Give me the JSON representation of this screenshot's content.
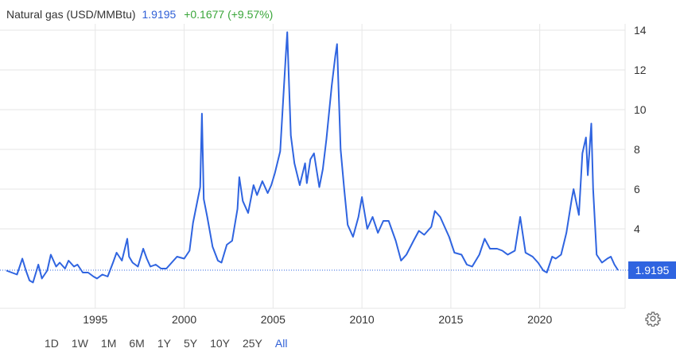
{
  "header": {
    "name": "Natural gas (USD/MMBtu)",
    "price": "1.9195",
    "change": "+0.1677 (+9.57%)"
  },
  "colors": {
    "line": "#2f64e0",
    "price": "#2f5fd6",
    "change": "#3aa63a",
    "grid": "#e6e6e6",
    "badge": "#2f64e0"
  },
  "last_price_label": "1.9195",
  "ranges": [
    "1D",
    "1W",
    "1M",
    "6M",
    "1Y",
    "5Y",
    "10Y",
    "25Y",
    "All"
  ],
  "active_range": "All",
  "settings_icon": "gear-icon",
  "chart_data": {
    "type": "line",
    "series": [
      {
        "x": [
          1990.0,
          1990.3,
          1990.6,
          1990.9,
          1991.1,
          1991.3,
          1991.5,
          1991.8,
          1992.0,
          1992.3,
          1992.5,
          1992.8,
          1993.0,
          1993.3,
          1993.5,
          1993.8,
          1994.0,
          1994.3,
          1994.6,
          1994.9,
          1995.1,
          1995.4,
          1995.7,
          1996.0,
          1996.2,
          1996.5,
          1996.8,
          1996.9,
          1997.1,
          1997.4,
          1997.7,
          1997.9,
          1998.1,
          1998.4,
          1998.7,
          1999.0,
          1999.3,
          1999.6,
          2000.0,
          2000.3,
          2000.5,
          2000.7,
          2000.9,
          2001.0,
          2001.1,
          2001.3,
          2001.6,
          2001.9,
          2002.1,
          2002.4,
          2002.7,
          2003.0,
          2003.1,
          2003.3,
          2003.6,
          2003.9,
          2004.1,
          2004.4,
          2004.7,
          2004.9,
          2005.1,
          2005.4,
          2005.7,
          2005.8,
          2005.9,
          2006.0,
          2006.2,
          2006.5,
          2006.8,
          2006.9,
          2007.1,
          2007.3,
          2007.6,
          2007.8,
          2008.0,
          2008.3,
          2008.5,
          2008.6,
          2008.8,
          2009.0,
          2009.2,
          2009.5,
          2009.8,
          2010.0,
          2010.3,
          2010.6,
          2010.9,
          2011.2,
          2011.5,
          2011.9,
          2012.2,
          2012.5,
          2012.9,
          2013.2,
          2013.5,
          2013.9,
          2014.1,
          2014.4,
          2014.7,
          2014.9,
          2015.2,
          2015.6,
          2015.9,
          2016.2,
          2016.6,
          2016.9,
          2017.2,
          2017.6,
          2017.9,
          2018.2,
          2018.6,
          2018.9,
          2019.2,
          2019.6,
          2019.9,
          2020.2,
          2020.4,
          2020.7,
          2020.9,
          2021.2,
          2021.5,
          2021.8,
          2021.9,
          2022.2,
          2022.4,
          2022.6,
          2022.7,
          2022.9,
          2023.0,
          2023.2,
          2023.5,
          2023.8,
          2024.0,
          2024.2,
          2024.4
        ],
        "y": [
          1.9,
          1.8,
          1.7,
          2.5,
          1.9,
          1.4,
          1.3,
          2.2,
          1.5,
          1.9,
          2.7,
          2.1,
          2.3,
          2.0,
          2.4,
          2.1,
          2.2,
          1.8,
          1.8,
          1.6,
          1.5,
          1.7,
          1.6,
          2.3,
          2.8,
          2.4,
          3.5,
          2.6,
          2.3,
          2.1,
          3.0,
          2.5,
          2.1,
          2.2,
          2.0,
          2.0,
          2.3,
          2.6,
          2.5,
          2.9,
          4.3,
          5.2,
          6.1,
          9.8,
          5.5,
          4.6,
          3.1,
          2.4,
          2.3,
          3.2,
          3.4,
          5.0,
          6.6,
          5.4,
          4.8,
          6.2,
          5.7,
          6.4,
          5.8,
          6.2,
          6.8,
          7.9,
          12.5,
          13.9,
          11.2,
          8.7,
          7.3,
          6.2,
          7.3,
          6.3,
          7.5,
          7.8,
          6.1,
          7.0,
          8.5,
          11.2,
          12.7,
          13.3,
          8.0,
          6.0,
          4.2,
          3.6,
          4.6,
          5.6,
          4.0,
          4.6,
          3.8,
          4.4,
          4.4,
          3.4,
          2.4,
          2.7,
          3.4,
          3.9,
          3.7,
          4.1,
          4.9,
          4.6,
          4.0,
          3.6,
          2.8,
          2.7,
          2.2,
          2.1,
          2.7,
          3.5,
          3.0,
          3.0,
          2.9,
          2.7,
          2.9,
          4.6,
          2.8,
          2.6,
          2.3,
          1.9,
          1.8,
          2.6,
          2.5,
          2.7,
          3.8,
          5.5,
          6.0,
          4.7,
          7.8,
          8.6,
          6.7,
          9.3,
          6.0,
          2.7,
          2.3,
          2.5,
          2.6,
          2.2,
          1.9195
        ],
        "color": "#2f64e0"
      }
    ],
    "xticks": [
      "1995",
      "2000",
      "2005",
      "2010",
      "2015",
      "2020"
    ],
    "xtick_values": [
      1995,
      2000,
      2005,
      2010,
      2015,
      2020
    ],
    "yticks": [
      4,
      6,
      8,
      10,
      12,
      14
    ],
    "xlim": [
      1990.0,
      2024.8
    ],
    "ylim": [
      0.0,
      14.0
    ],
    "grid": true,
    "y_axis_side": "right",
    "last_value_badge": "1.9195"
  }
}
